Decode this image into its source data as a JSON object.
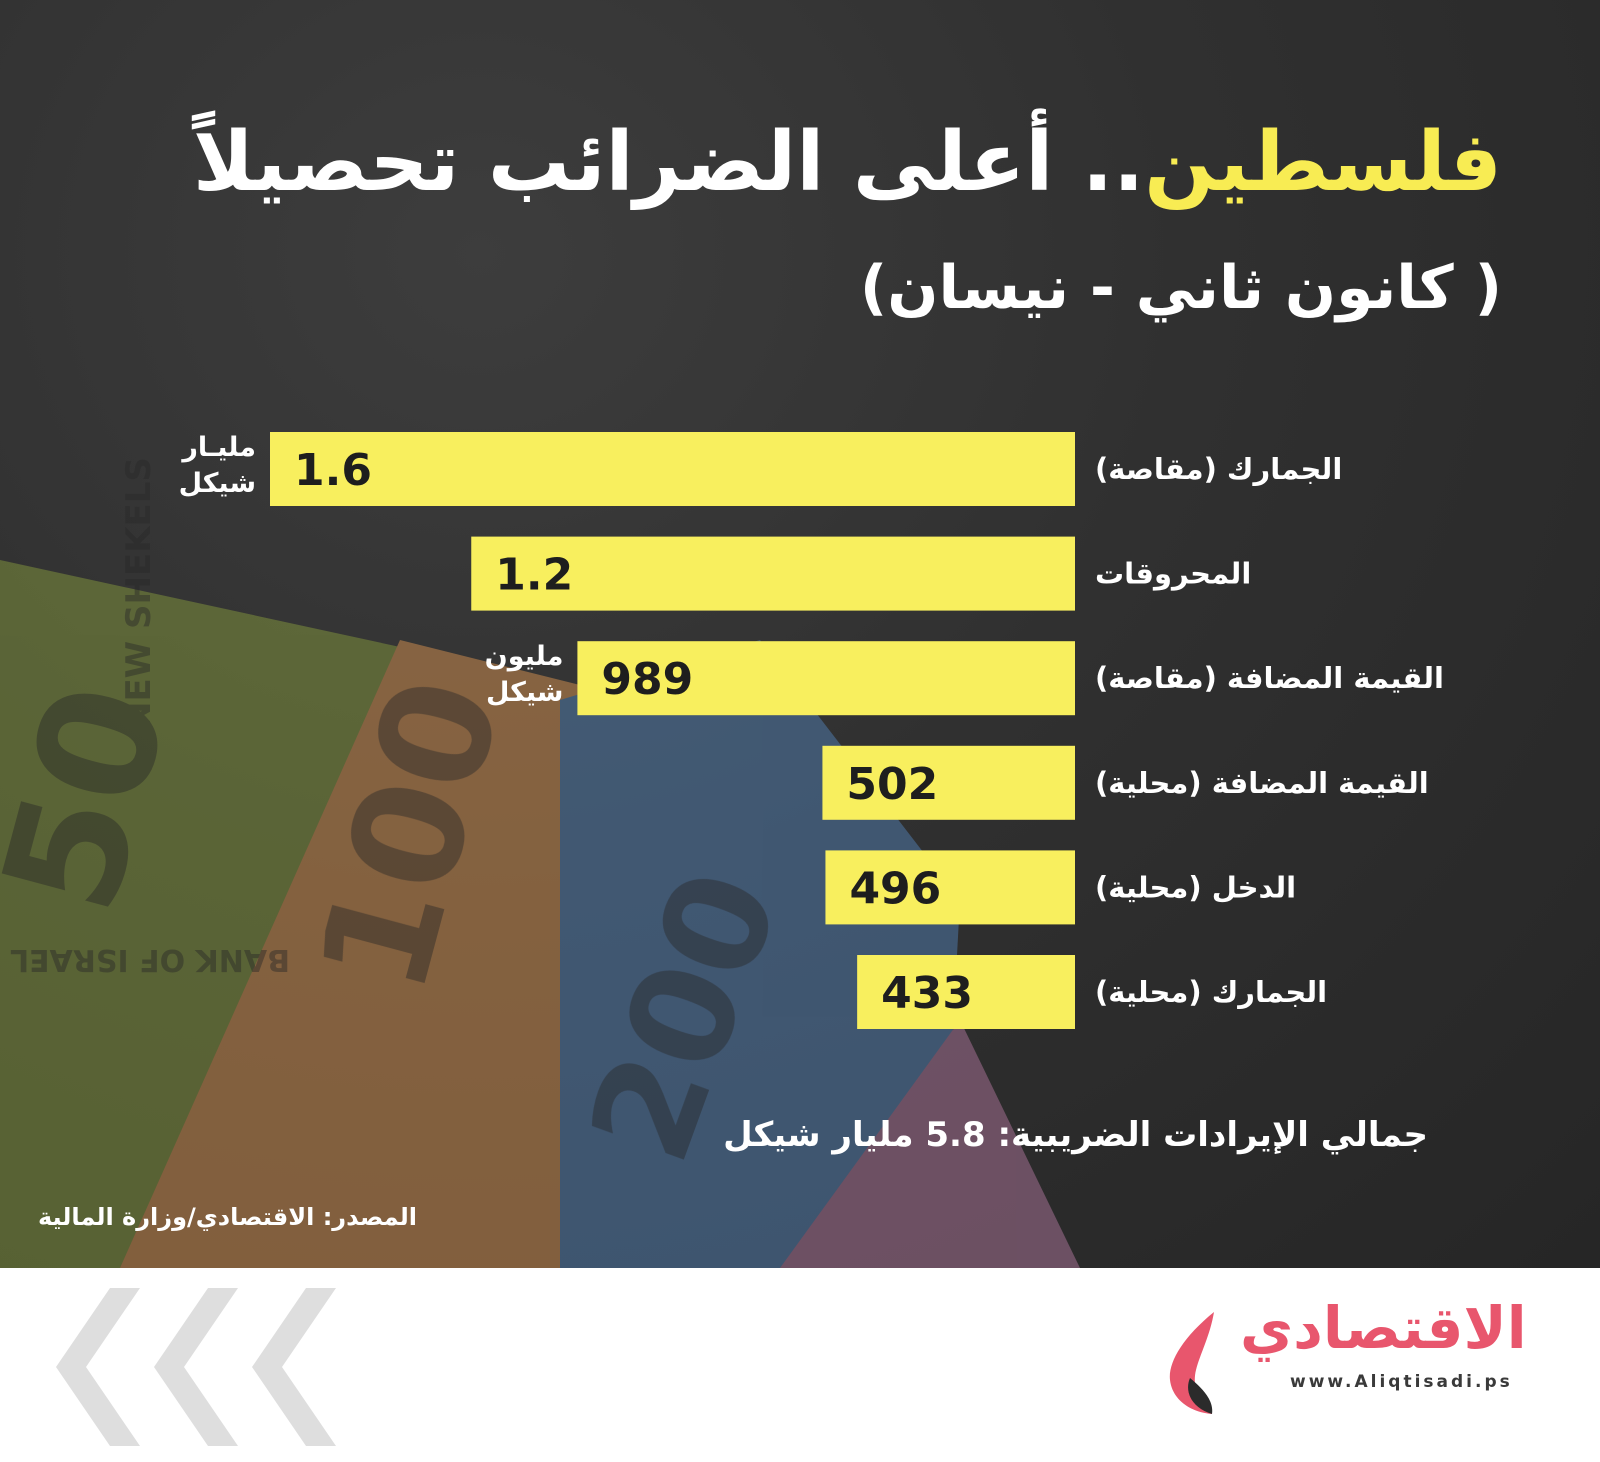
{
  "header": {
    "title_highlight": "فلسطين",
    "title_rest": ".. أعلى الضرائب تحصيلاً",
    "subtitle": "( كانون ثاني - نيسان)"
  },
  "chart_data": {
    "type": "bar",
    "orientation": "horizontal",
    "categories": [
      "الجمارك (مقاصة)",
      "المحروقات",
      "القيمة المضافة (مقاصة)",
      "القيمة المضافة (محلية)",
      "الدخل (محلية)",
      "الجمارك (محلية)"
    ],
    "value_labels": [
      "1.6",
      "1.2",
      "989",
      "502",
      "496",
      "433"
    ],
    "values_million_shekel": [
      1600,
      1200,
      989,
      502,
      496,
      433
    ],
    "unit_labels": [
      {
        "index": 0,
        "line1": "مليـار",
        "line2": "شيكل"
      },
      {
        "index": 2,
        "line1": "مليون",
        "line2": "شيكل"
      }
    ],
    "bar_color": "#f8ef5e"
  },
  "total": "جمالي الإيرادات الضريبية: 5.8 مليار شيكل",
  "source": "المصدر: الاقتصادي/وزارة المالية",
  "banknote_text": [
    "NEW SHEKELS",
    "50",
    "100",
    "200",
    "BANK OF ISRAEL"
  ],
  "footer": {
    "logo_text": "الاقتصادي",
    "logo_url": "www.Aliqtisadi.ps"
  },
  "colors": {
    "accent": "#f8ec53",
    "brand": "#e8566d",
    "background": "#2f2f2f"
  }
}
